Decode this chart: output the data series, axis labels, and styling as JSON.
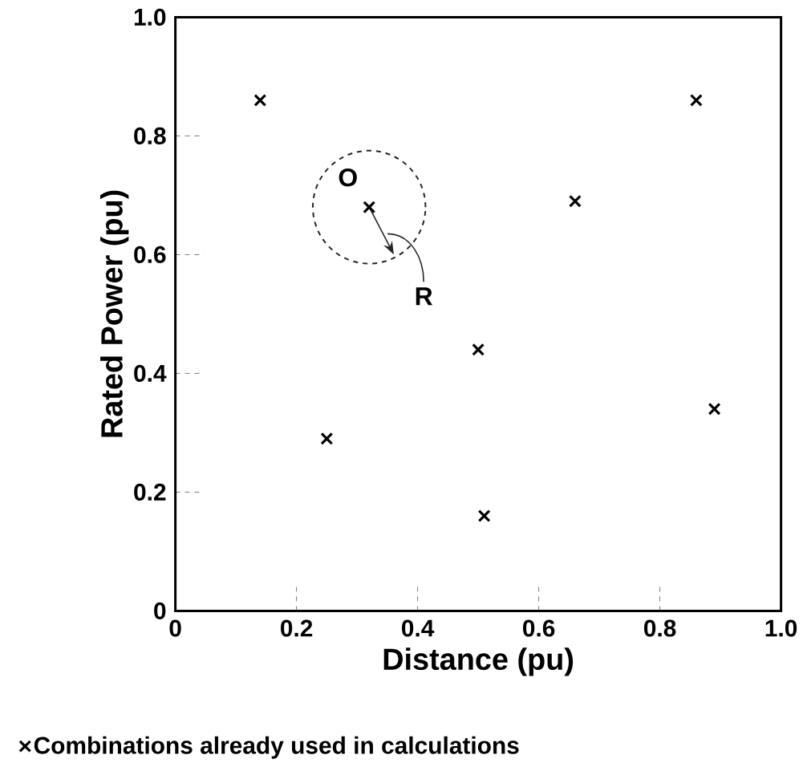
{
  "chart_data": {
    "type": "scatter",
    "xlabel": "Distance (pu)",
    "ylabel": "Rated Power (pu)",
    "x": [
      0.14,
      0.86,
      0.32,
      0.66,
      0.5,
      0.89,
      0.25,
      0.51
    ],
    "series": [
      {
        "name": "Combinations already used in calculations",
        "color": "#000000",
        "values": [
          0.86,
          0.86,
          0.68,
          0.69,
          0.44,
          0.34,
          0.29,
          0.16
        ]
      }
    ],
    "xlim": [
      0,
      1
    ],
    "ylim": [
      0,
      1
    ],
    "xticks": [
      0,
      0.2,
      0.4,
      0.6,
      0.8,
      {
        "value": 1,
        "label": "1.0"
      }
    ],
    "yticks": [
      0,
      0.2,
      0.4,
      0.6,
      0.8,
      {
        "value": 1,
        "label": "1.0"
      }
    ],
    "annotations": [
      "O",
      "R"
    ],
    "marker": "cross",
    "legend": "bottom",
    "grid": false
  }
}
